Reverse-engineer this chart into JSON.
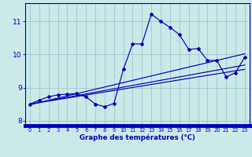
{
  "xlabel": "Graphe des températures (°C)",
  "background_color": "#cce8e8",
  "grid_color": "#99cccc",
  "line_color": "#0000bb",
  "x_data": [
    0,
    1,
    2,
    3,
    4,
    5,
    6,
    7,
    8,
    9,
    10,
    11,
    12,
    13,
    14,
    15,
    16,
    17,
    18,
    19,
    20,
    21,
    22,
    23
  ],
  "y_main": [
    8.5,
    8.62,
    8.72,
    8.78,
    8.8,
    8.82,
    8.72,
    8.5,
    8.42,
    8.52,
    9.55,
    10.32,
    10.32,
    11.22,
    11.0,
    10.82,
    10.6,
    10.15,
    10.18,
    9.82,
    9.82,
    9.32,
    9.45,
    9.92
  ],
  "reg_lines": [
    [
      [
        0,
        8.48
      ],
      [
        23,
        10.02
      ]
    ],
    [
      [
        0,
        8.5
      ],
      [
        23,
        9.68
      ]
    ],
    [
      [
        0,
        8.5
      ],
      [
        23,
        9.55
      ]
    ]
  ],
  "ytick_vals": [
    8,
    9,
    10,
    11
  ],
  "xtick_vals": [
    0,
    1,
    2,
    3,
    4,
    5,
    6,
    7,
    8,
    9,
    10,
    11,
    12,
    13,
    14,
    15,
    16,
    17,
    18,
    19,
    20,
    21,
    22,
    23
  ],
  "ylim": [
    7.85,
    11.55
  ],
  "xlim": [
    -0.5,
    23.5
  ],
  "figsize": [
    3.2,
    2.0
  ],
  "dpi": 100
}
